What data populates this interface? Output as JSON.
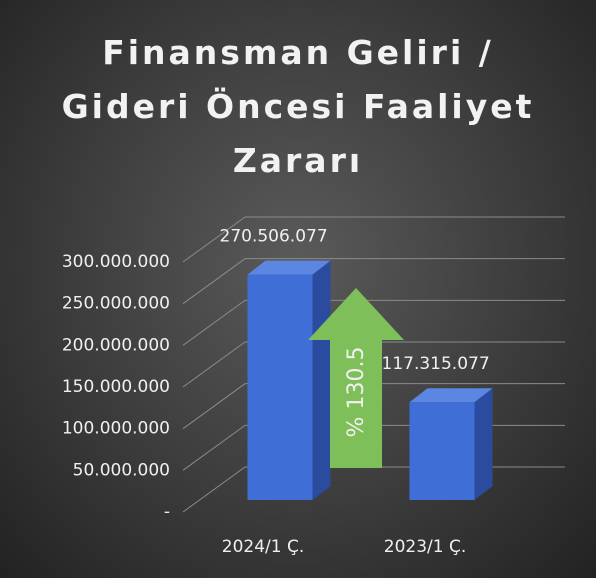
{
  "chart_data": {
    "type": "bar3d",
    "title": "Finansman Geliri / Gideri Öncesi Faaliyet Zararı",
    "categories": [
      "2024/1 Ç.",
      "2023/1 Ç."
    ],
    "values": [
      270506077,
      117315077
    ],
    "value_labels": [
      "270.506.077",
      "117.315.077"
    ],
    "color": "#3f6fd6",
    "ylim": [
      0,
      300000000
    ],
    "yticks": [
      {
        "value": 0,
        "label": "-"
      },
      {
        "value": 50000000,
        "label": "50.000.000"
      },
      {
        "value": 100000000,
        "label": "100.000.000"
      },
      {
        "value": 150000000,
        "label": "150.000.000"
      },
      {
        "value": 200000000,
        "label": "200.000.000"
      },
      {
        "value": 250000000,
        "label": "250.000.000"
      },
      {
        "value": 300000000,
        "label": "300.000.000"
      }
    ],
    "grid": true,
    "annotation": "% 130.5"
  }
}
